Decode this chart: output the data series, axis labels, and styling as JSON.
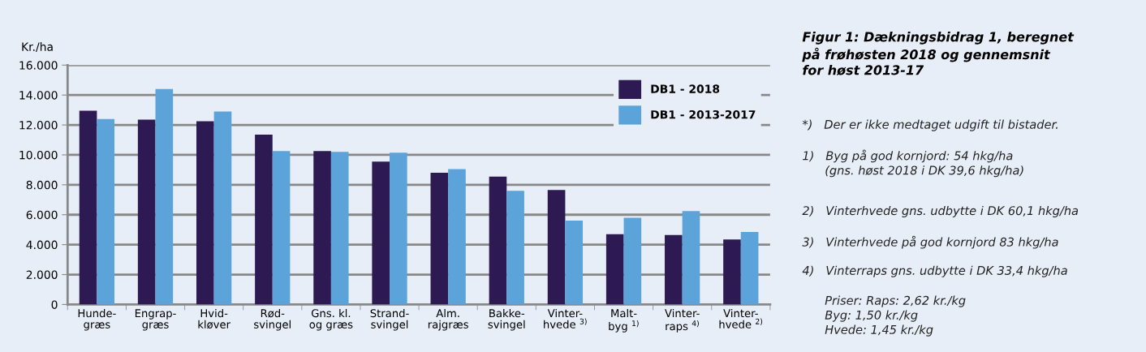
{
  "chart_data": {
    "type": "bar",
    "title": "Figur 1: Dækningsbidrag 1, beregnet\npå frøhøsten 2018 og gennemsnit\nfor høst 2013-17",
    "ylabel": "Kr./ha",
    "categories": [
      "Hunde-\ngræs",
      "Engrap-\ngræs",
      "Hvid-\nkløver",
      "Rød-\nsvingel",
      "Gns. kl.\nog græs",
      "Strand-\nsvingel",
      "Alm.\nrajgræs",
      "Bakke-\nsvingel",
      "Vinter-\nhvede $^{3)}$",
      "Malt-\nbyg $^{1)}$",
      "Vinter-\nraps $^{4)}$",
      "Vinter-\nhvede $^{2)}$"
    ],
    "series": [
      {
        "name": "DB1 - 2018",
        "color": "#2d1a52",
        "values": [
          12950,
          12350,
          12250,
          11350,
          10250,
          9550,
          8800,
          8550,
          7650,
          4700,
          4650,
          4350
        ]
      },
      {
        "name": "DB1 - 2013-2017",
        "color": "#5ba3d9",
        "values": [
          12400,
          14400,
          12900,
          10250,
          10200,
          10150,
          9050,
          7600,
          5600,
          5800,
          6250,
          4850
        ]
      }
    ],
    "ylim": [
      0,
      16000
    ],
    "yticks": [
      0,
      {
        "value": 2000,
        "label": "2.000"
      },
      {
        "value": 4000,
        "label": "4.000"
      },
      {
        "value": 6000,
        "label": "6.000"
      },
      {
        "value": 8000,
        "label": "8.000"
      },
      {
        "value": 10000,
        "label": "10.000"
      },
      {
        "value": 12000,
        "label": "12.000"
      },
      {
        "value": 14000,
        "label": "14.000"
      },
      {
        "value": 16000,
        "label": "16.000"
      }
    ],
    "grid": "y",
    "legend": "top right",
    "annotations": [
      "*)   Der er ikke medtaget udgift til bistader.",
      "1)   Byg på god kornjord: 54 hkg/ha\n      (gns. høst 2018 i DK 39,6 hkg/ha)",
      "2)   Vinterhvede gns. udbytte i DK 60,1 hkg/ha",
      "3)   Vinterhvede på god kornjord 83 hkg/ha",
      "4)   Vinterraps gns. udbytte i DK 33,4 hkg/ha",
      "      Priser: Raps: 2,62 kr./kg\n      Byg: 1,50 kr./kg\n      Hvede: 1,45 kr./kg"
    ]
  }
}
